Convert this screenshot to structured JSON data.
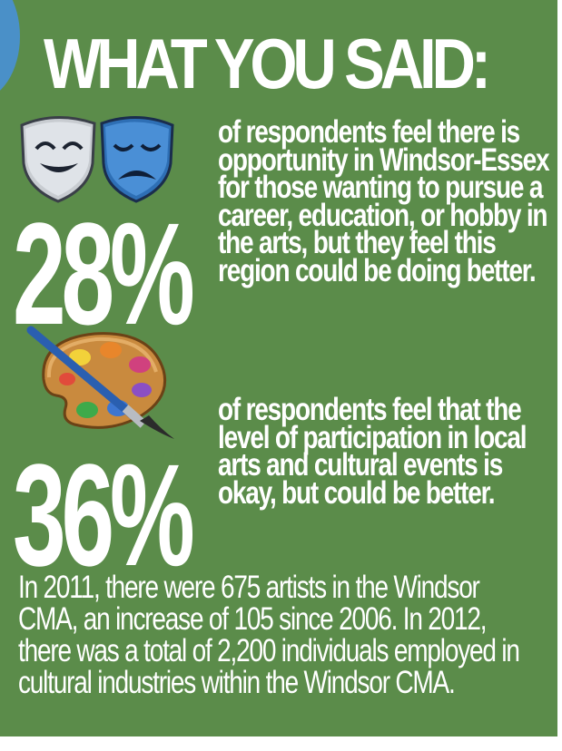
{
  "title": "WHAT YOU SAID:",
  "stats": [
    {
      "percent": "28%",
      "description": "of respondents feel there is opportunity in Windsor-Essex for those wanting to pursue a career, education, or hobby in the arts, but they feel this region could be doing better.",
      "icon": "theater-masks-icon"
    },
    {
      "percent": "36%",
      "description": "of respondents feel that the level of participation in local arts and cultural events is okay, but could be better.",
      "icon": "paint-palette-icon"
    }
  ],
  "footer": "In 2011, there were 675 artists in the Windsor CMA, an increase of 105 since 2006. In 2012, there was a total of 2,200 individuals employed in cultural industries within the Windsor CMA.",
  "colors": {
    "background": "#5b8c4a",
    "text": "#ffffff",
    "mask_left": "#c8ccd1",
    "mask_right": "#2e6fb5",
    "palette_wood": "#c98a3e",
    "brush_handle": "#2a5fb0"
  }
}
